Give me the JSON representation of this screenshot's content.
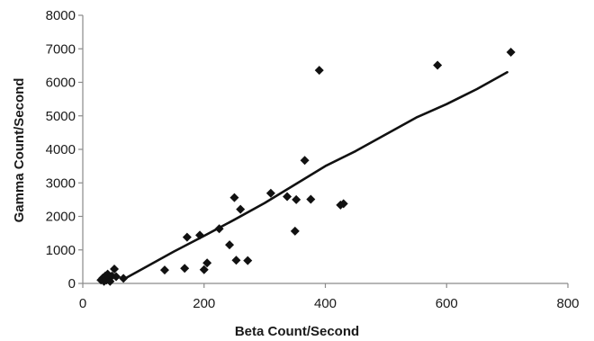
{
  "chart_data": {
    "type": "scatter",
    "title": "",
    "xlabel": "Beta Count/Second",
    "ylabel": "Gamma Count/Second",
    "xlim": [
      0,
      800
    ],
    "ylim": [
      0,
      8000
    ],
    "xticks": [
      "0",
      "200",
      "400",
      "600",
      "800"
    ],
    "yticks": [
      "0",
      "1000",
      "2000",
      "3000",
      "4000",
      "5000",
      "6000",
      "7000",
      "8000"
    ],
    "grid": false,
    "legend": "none",
    "marker": "diamond",
    "colors": {
      "points": "#111111",
      "line": "#111111",
      "axis": "#8a8a8a"
    },
    "points": [
      [
        30,
        100
      ],
      [
        33,
        160
      ],
      [
        35,
        60
      ],
      [
        37,
        220
      ],
      [
        39,
        100
      ],
      [
        41,
        280
      ],
      [
        43,
        180
      ],
      [
        45,
        60
      ],
      [
        48,
        220
      ],
      [
        52,
        430
      ],
      [
        55,
        200
      ],
      [
        67,
        150
      ],
      [
        135,
        400
      ],
      [
        168,
        450
      ],
      [
        172,
        1380
      ],
      [
        193,
        1440
      ],
      [
        200,
        410
      ],
      [
        205,
        610
      ],
      [
        225,
        1630
      ],
      [
        242,
        1150
      ],
      [
        250,
        2560
      ],
      [
        253,
        690
      ],
      [
        260,
        2210
      ],
      [
        272,
        680
      ],
      [
        310,
        2690
      ],
      [
        337,
        2590
      ],
      [
        350,
        1560
      ],
      [
        352,
        2500
      ],
      [
        366,
        3670
      ],
      [
        376,
        2510
      ],
      [
        390,
        6360
      ],
      [
        425,
        2340
      ],
      [
        430,
        2380
      ],
      [
        585,
        6510
      ],
      [
        706,
        6900
      ]
    ],
    "trend_line": {
      "x": [
        70,
        100,
        150,
        200,
        250,
        300,
        350,
        400,
        450,
        500,
        550,
        600,
        650,
        700
      ],
      "y": [
        150,
        450,
        950,
        1420,
        1900,
        2400,
        2950,
        3500,
        3950,
        4450,
        4950,
        5350,
        5800,
        6300
      ]
    }
  }
}
